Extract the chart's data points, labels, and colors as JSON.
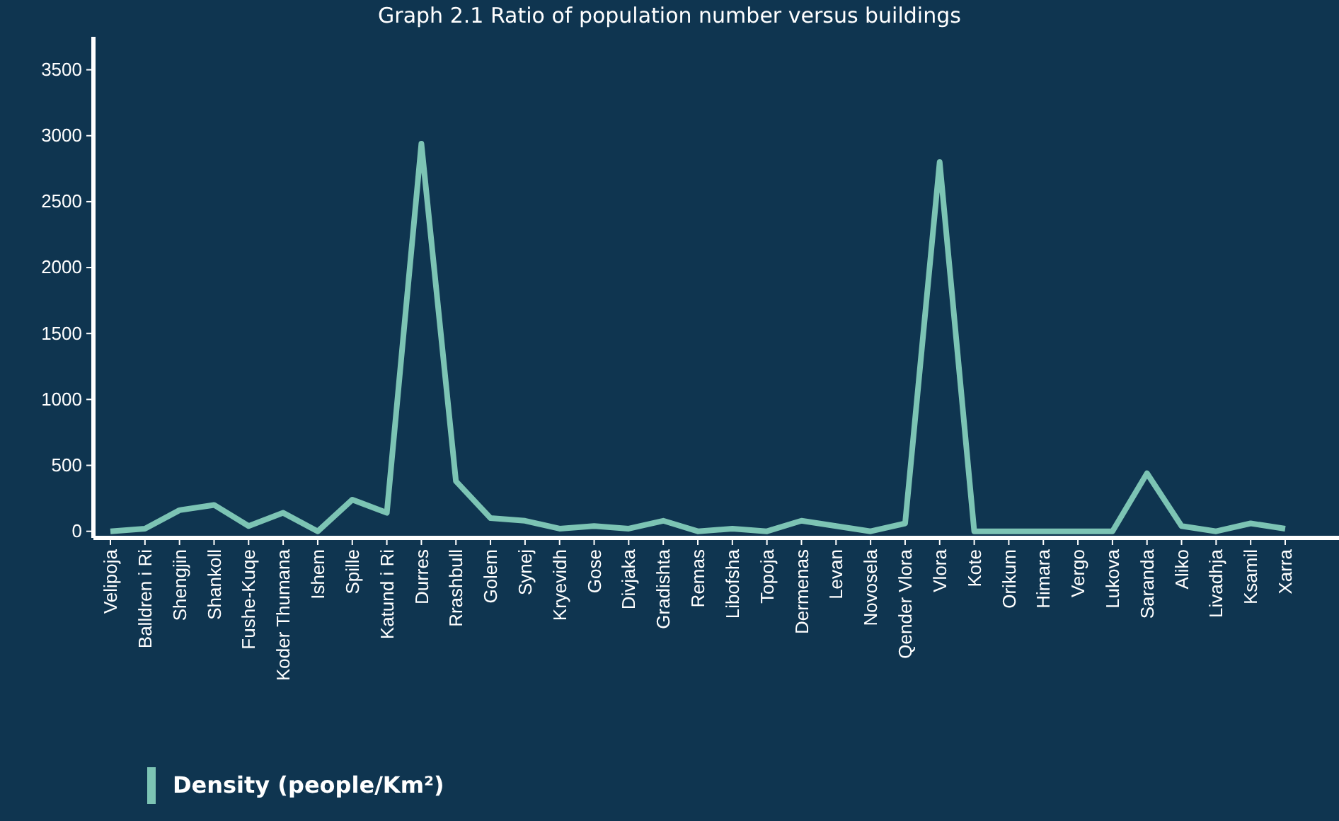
{
  "chart_data": {
    "type": "line",
    "title": "Graph 2.1 Ratio of population number versus buildings",
    "categories": [
      "Velipoja",
      "Balldren i Ri",
      "Shengjin",
      "Shankoll",
      "Fushe-Kuqe",
      "Koder Thumana",
      "Ishem",
      "Spille",
      "Katund i Ri",
      "Durres",
      "Rrashbull",
      "Golem",
      "Synej",
      "Kryevidh",
      "Gose",
      "Divjaka",
      "Gradishta",
      "Remas",
      "Libofsha",
      "Topoja",
      "Dermenas",
      "Levan",
      "Novosela",
      "Qender Vlora",
      "Vlora",
      "Kote",
      "Orikum",
      "Himara",
      "Vergo",
      "Lukova",
      "Saranda",
      "Aliko",
      "Livadhja",
      "Ksamil",
      "Xarra"
    ],
    "series": [
      {
        "name": "Density (people/Km²)",
        "color": "#7cc4b4",
        "values": [
          0,
          20,
          160,
          200,
          40,
          140,
          0,
          240,
          140,
          2940,
          380,
          100,
          80,
          20,
          40,
          20,
          80,
          0,
          20,
          0,
          80,
          40,
          0,
          60,
          2800,
          0,
          0,
          0,
          0,
          0,
          440,
          40,
          0,
          60,
          20
        ]
      }
    ],
    "ylim": [
      -50,
      3750
    ],
    "yticks": [
      0,
      500,
      1000,
      1500,
      2000,
      2500,
      3000,
      3500
    ],
    "grid": false,
    "legend": "bottom left",
    "marker": "none",
    "line_style": "solid"
  }
}
